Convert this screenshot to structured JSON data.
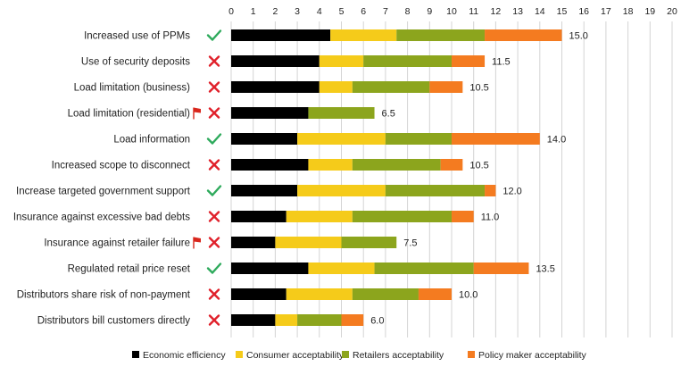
{
  "chart_data": {
    "type": "bar",
    "orientation": "horizontal",
    "stacked": true,
    "xlim": [
      0,
      20
    ],
    "xticks": [
      0,
      1,
      2,
      3,
      4,
      5,
      6,
      7,
      8,
      9,
      10,
      11,
      12,
      13,
      14,
      15,
      16,
      17,
      18,
      19,
      20
    ],
    "grid": true,
    "legend_position": "bottom",
    "series_colors": {
      "Economic efficiency": "#000000",
      "Consumer acceptability": "#f5cb1a",
      "Retailers acceptability": "#8ca51d",
      "Policy maker acceptability": "#f47b20"
    },
    "series": [
      {
        "name": "Economic efficiency",
        "values": [
          4.5,
          4.0,
          4.0,
          3.5,
          3.0,
          3.5,
          3.0,
          2.5,
          2.0,
          3.5,
          2.5,
          2.0
        ]
      },
      {
        "name": "Consumer acceptability",
        "values": [
          3.0,
          2.0,
          1.5,
          0.0,
          4.0,
          2.0,
          4.0,
          3.0,
          3.0,
          3.0,
          3.0,
          1.0
        ]
      },
      {
        "name": "Retailers acceptability",
        "values": [
          4.0,
          4.0,
          3.5,
          3.0,
          3.0,
          4.0,
          4.5,
          4.5,
          2.5,
          4.5,
          3.0,
          2.0
        ]
      },
      {
        "name": "Policy maker acceptability",
        "values": [
          3.5,
          1.5,
          1.5,
          0.0,
          4.0,
          1.0,
          0.5,
          1.0,
          0.0,
          2.5,
          1.5,
          1.0
        ]
      }
    ],
    "categories": [
      "Increased use of PPMs",
      "Use of security deposits",
      "Load limitation (business)",
      "Load limitation (residential)",
      "Load information",
      "Increased scope to disconnect",
      "Increase targeted government support",
      "Insurance against excessive bad debts",
      "Insurance against retailer failure",
      "Regulated retail price reset",
      "Distributors share risk of non-payment",
      "Distributors bill customers directly"
    ],
    "totals": [
      "15.0",
      "11.5",
      "10.5",
      "6.5",
      "14.0",
      "10.5",
      "12.0",
      "11.0",
      "7.5",
      "13.5",
      "10.0",
      "6.0"
    ],
    "status_icons": [
      "check-icon",
      "cross-icon",
      "cross-icon",
      "cross-icon",
      "check-icon",
      "cross-icon",
      "check-icon",
      "cross-icon",
      "cross-icon",
      "check-icon",
      "cross-icon",
      "cross-icon"
    ],
    "flags": [
      false,
      false,
      false,
      true,
      false,
      false,
      false,
      false,
      true,
      false,
      false,
      false
    ],
    "status_colors": {
      "check-icon": "#2eaa5c",
      "cross-icon": "#e0202a",
      "flag-icon": "#d9261c"
    }
  }
}
